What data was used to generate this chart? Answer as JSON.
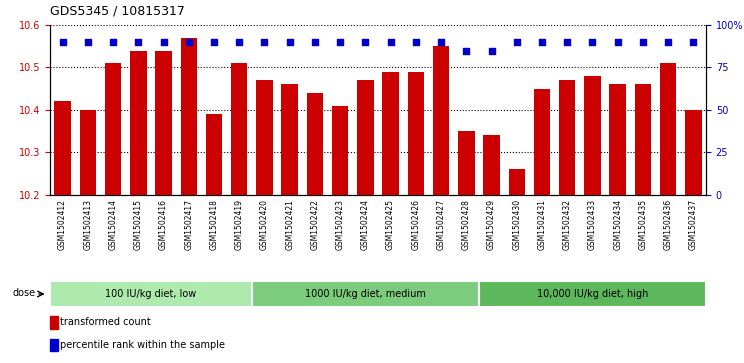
{
  "title": "GDS5345 / 10815317",
  "samples": [
    "GSM1502412",
    "GSM1502413",
    "GSM1502414",
    "GSM1502415",
    "GSM1502416",
    "GSM1502417",
    "GSM1502418",
    "GSM1502419",
    "GSM1502420",
    "GSM1502421",
    "GSM1502422",
    "GSM1502423",
    "GSM1502424",
    "GSM1502425",
    "GSM1502426",
    "GSM1502427",
    "GSM1502428",
    "GSM1502429",
    "GSM1502430",
    "GSM1502431",
    "GSM1502432",
    "GSM1502433",
    "GSM1502434",
    "GSM1502435",
    "GSM1502436",
    "GSM1502437"
  ],
  "bar_values": [
    10.42,
    10.4,
    10.51,
    10.54,
    10.54,
    10.57,
    10.39,
    10.51,
    10.47,
    10.46,
    10.44,
    10.41,
    10.47,
    10.49,
    10.49,
    10.55,
    10.35,
    10.34,
    10.26,
    10.45,
    10.47,
    10.48,
    10.46,
    10.46,
    10.51,
    10.4
  ],
  "percentile_values": [
    90,
    90,
    90,
    90,
    90,
    90,
    90,
    90,
    90,
    90,
    90,
    90,
    90,
    90,
    90,
    90,
    85,
    85,
    90,
    90,
    90,
    90,
    90,
    90,
    90,
    90
  ],
  "groups": [
    {
      "label": "100 IU/kg diet, low",
      "start": 0,
      "end": 8,
      "color": "#aeeaae"
    },
    {
      "label": "1000 IU/kg diet, medium",
      "start": 8,
      "end": 17,
      "color": "#7dcc7d"
    },
    {
      "label": "10,000 IU/kg diet, high",
      "start": 17,
      "end": 26,
      "color": "#5db85d"
    }
  ],
  "ylim": [
    10.2,
    10.6
  ],
  "yticks": [
    10.2,
    10.3,
    10.4,
    10.5,
    10.6
  ],
  "right_yticks": [
    0,
    25,
    50,
    75,
    100
  ],
  "bar_color": "#CC0000",
  "dot_color": "#0000CC",
  "bg_color": "#D0D0D0",
  "plot_bg": "#FFFFFF",
  "legend_transformed": "transformed count",
  "legend_percentile": "percentile rank within the sample",
  "dose_label": "dose"
}
